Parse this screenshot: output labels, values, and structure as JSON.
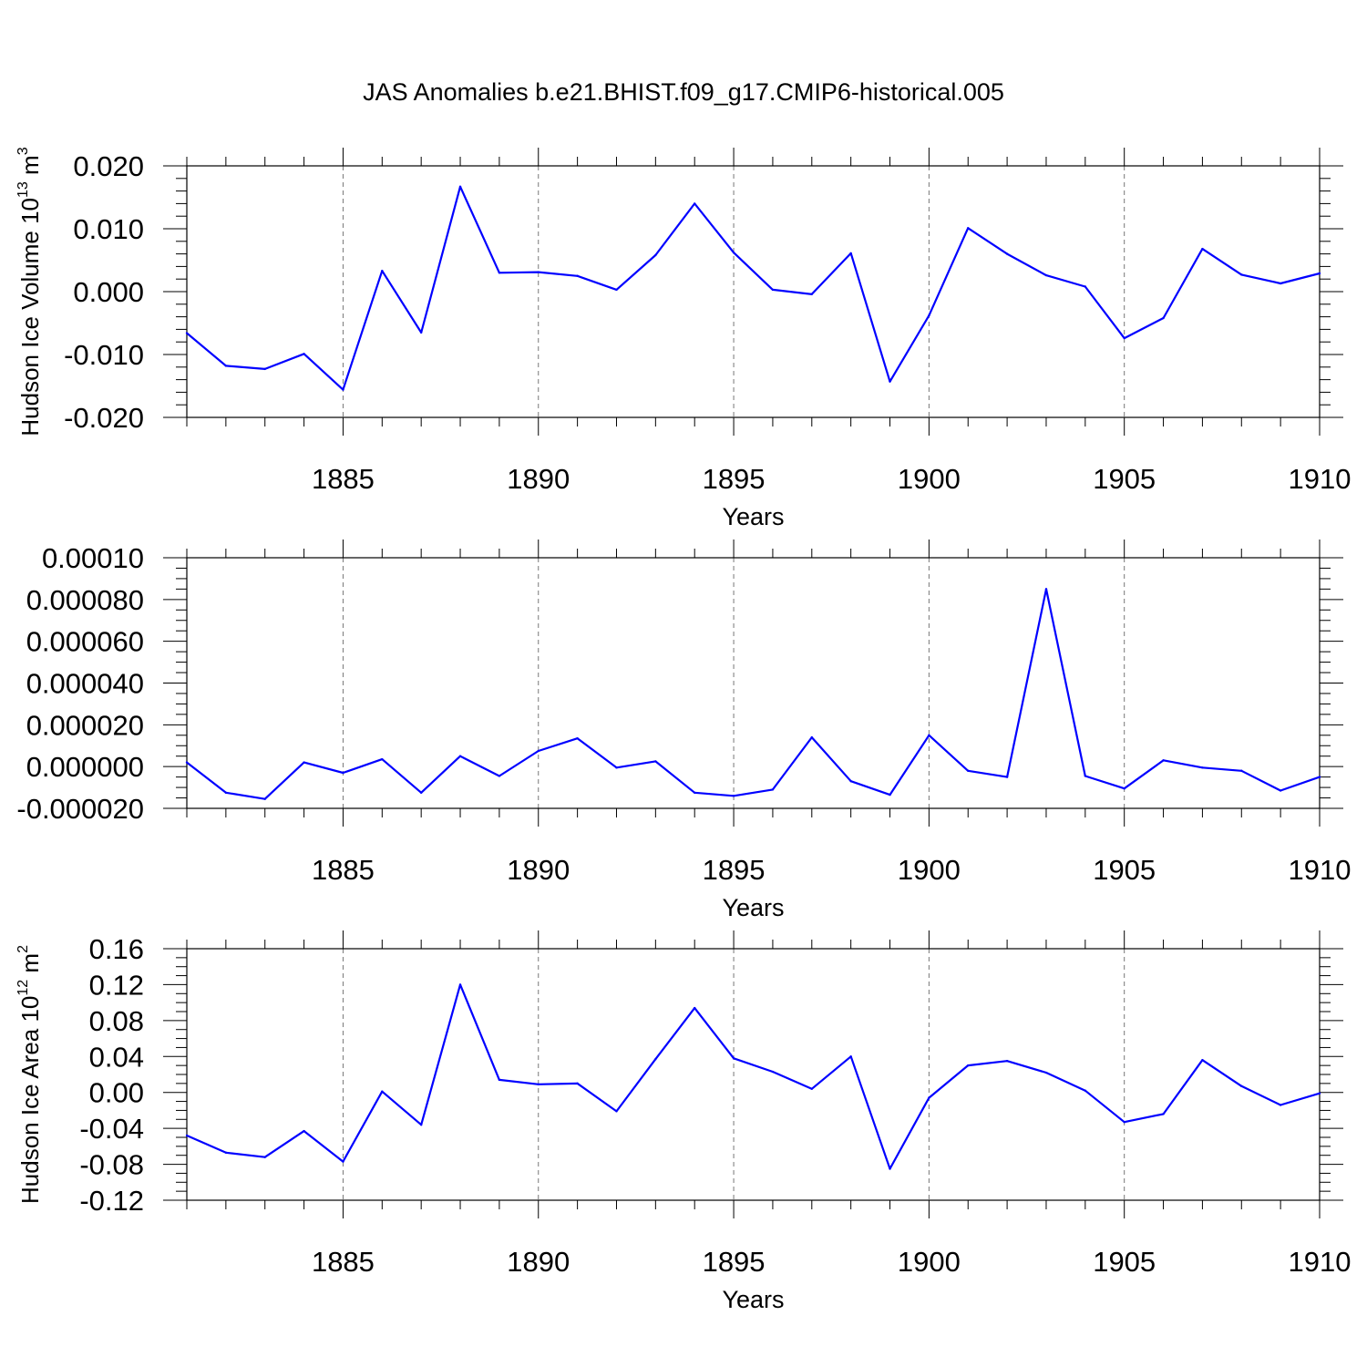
{
  "title": "JAS Anomalies b.e21.BHIST.f09_g17.CMIP6-historical.005",
  "series_color": "#0000ff",
  "chart_data": [
    {
      "type": "line",
      "ylabel": "Hudson Ice Volume 10",
      "ylabel_exp": "13",
      "ylabel_unit": " m",
      "ylabel_unit_exp": "3",
      "xlabel": "Years",
      "xlim": [
        1881,
        1910
      ],
      "ylim": [
        -0.02,
        0.02
      ],
      "ytick_values": [
        0.02,
        0.01,
        0.0,
        -0.01,
        -0.02
      ],
      "ytick_labels": [
        "0.020",
        "0.010",
        "0.000",
        "-0.010",
        "-0.020"
      ],
      "xtick_values": [
        1885,
        1890,
        1895,
        1900,
        1905,
        1910
      ],
      "xtick_labels": [
        "1885",
        "1890",
        "1895",
        "1900",
        "1905",
        "1910"
      ],
      "x": [
        1881,
        1882,
        1883,
        1884,
        1885,
        1886,
        1887,
        1888,
        1889,
        1890,
        1891,
        1892,
        1893,
        1894,
        1895,
        1896,
        1897,
        1898,
        1899,
        1900,
        1901,
        1902,
        1903,
        1904,
        1905,
        1906,
        1907,
        1908,
        1909,
        1910
      ],
      "values": [
        -0.0066,
        -0.0118,
        -0.0123,
        -0.0099,
        -0.0156,
        0.0033,
        -0.0065,
        0.0167,
        0.003,
        0.0031,
        0.0025,
        0.0003,
        0.0058,
        0.014,
        0.0062,
        0.0003,
        -0.0004,
        0.0061,
        -0.0143,
        -0.0038,
        0.0101,
        0.006,
        0.0026,
        0.0008,
        -0.0074,
        -0.0042,
        0.0068,
        0.0027,
        0.0013,
        0.0029
      ]
    },
    {
      "type": "line",
      "ylabel": "",
      "ylabel_exp": "",
      "ylabel_unit": "",
      "ylabel_unit_exp": "",
      "xlabel": "Years",
      "xlim": [
        1881,
        1910
      ],
      "ylim": [
        -2e-05,
        0.0001
      ],
      "ytick_values": [
        0.0001,
        8e-05,
        6e-05,
        4e-05,
        2e-05,
        0.0,
        -2e-05
      ],
      "ytick_labels": [
        "0.00010",
        "0.000080",
        "0.000060",
        "0.000040",
        "0.000020",
        "0.000000",
        "-0.000020"
      ],
      "xtick_values": [
        1885,
        1890,
        1895,
        1900,
        1905,
        1910
      ],
      "xtick_labels": [
        "1885",
        "1890",
        "1895",
        "1900",
        "1905",
        "1910"
      ],
      "x": [
        1881,
        1882,
        1883,
        1884,
        1885,
        1886,
        1887,
        1888,
        1889,
        1890,
        1891,
        1892,
        1893,
        1894,
        1895,
        1896,
        1897,
        1898,
        1899,
        1900,
        1901,
        1902,
        1903,
        1904,
        1905,
        1906,
        1907,
        1908,
        1909,
        1910
      ],
      "values": [
        2e-06,
        -1.25e-05,
        -1.55e-05,
        2e-06,
        -3e-06,
        3.5e-06,
        -1.25e-05,
        5e-06,
        -4.5e-06,
        7.5e-06,
        1.35e-05,
        -5e-07,
        2.5e-06,
        -1.25e-05,
        -1.4e-05,
        -1.1e-05,
        1.4e-05,
        -7e-06,
        -1.35e-05,
        1.5e-05,
        -2e-06,
        -5e-06,
        8.5e-05,
        -4.5e-06,
        -1.05e-05,
        3e-06,
        -5e-07,
        -2e-06,
        -1.15e-05,
        -5e-06
      ]
    },
    {
      "type": "line",
      "ylabel": "Hudson Ice Area 10",
      "ylabel_exp": "12",
      "ylabel_unit": " m",
      "ylabel_unit_exp": "2",
      "xlabel": "Years",
      "xlim": [
        1881,
        1910
      ],
      "ylim": [
        -0.12,
        0.16
      ],
      "ytick_values": [
        0.16,
        0.12,
        0.08,
        0.04,
        0.0,
        -0.04,
        -0.08,
        -0.12
      ],
      "ytick_labels": [
        "0.16",
        "0.12",
        "0.08",
        "0.04",
        "0.00",
        "-0.04",
        "-0.08",
        "-0.12"
      ],
      "xtick_values": [
        1885,
        1890,
        1895,
        1900,
        1905,
        1910
      ],
      "xtick_labels": [
        "1885",
        "1890",
        "1895",
        "1900",
        "1905",
        "1910"
      ],
      "x": [
        1881,
        1882,
        1883,
        1884,
        1885,
        1886,
        1887,
        1888,
        1889,
        1890,
        1891,
        1892,
        1893,
        1894,
        1895,
        1896,
        1897,
        1898,
        1899,
        1900,
        1901,
        1902,
        1903,
        1904,
        1905,
        1906,
        1907,
        1908,
        1909,
        1910
      ],
      "values": [
        -0.048,
        -0.067,
        -0.072,
        -0.043,
        -0.077,
        0.001,
        -0.036,
        0.12,
        0.014,
        0.009,
        0.01,
        -0.021,
        0.037,
        0.094,
        0.038,
        0.023,
        0.004,
        0.04,
        -0.085,
        -0.006,
        0.03,
        0.035,
        0.022,
        0.002,
        -0.033,
        -0.024,
        0.036,
        0.007,
        -0.014,
        -0.001
      ]
    }
  ]
}
